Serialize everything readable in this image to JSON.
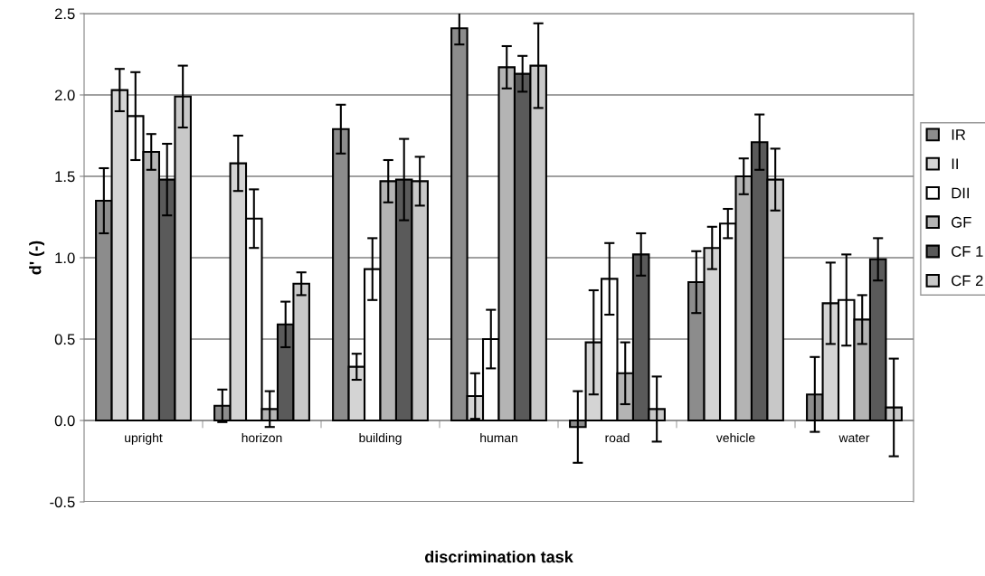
{
  "chart_data": {
    "type": "bar",
    "xlabel": "discrimination task",
    "ylabel": "d' (-)",
    "categories": [
      "upright",
      "horizon",
      "building",
      "human",
      "road",
      "vehicle",
      "water"
    ],
    "series": [
      {
        "name": "IR",
        "color": "#8c8c8c",
        "values": [
          1.35,
          0.09,
          1.79,
          2.41,
          -0.04,
          0.85,
          0.16
        ],
        "errors": [
          0.2,
          0.1,
          0.15,
          0.1,
          0.22,
          0.19,
          0.23
        ]
      },
      {
        "name": "II",
        "color": "#d4d4d4",
        "values": [
          2.03,
          1.58,
          0.33,
          0.15,
          0.48,
          1.06,
          0.72
        ],
        "errors": [
          0.13,
          0.17,
          0.08,
          0.14,
          0.32,
          0.13,
          0.25
        ]
      },
      {
        "name": "DII",
        "color": "#ffffff",
        "values": [
          1.87,
          1.24,
          0.93,
          0.5,
          0.87,
          1.21,
          0.74
        ],
        "errors": [
          0.27,
          0.18,
          0.19,
          0.18,
          0.22,
          0.09,
          0.28
        ]
      },
      {
        "name": "GF",
        "color": "#b4b4b4",
        "values": [
          1.65,
          0.07,
          1.47,
          2.17,
          0.29,
          1.5,
          0.62
        ],
        "errors": [
          0.11,
          0.11,
          0.13,
          0.13,
          0.19,
          0.11,
          0.15
        ]
      },
      {
        "name": "CF 1",
        "color": "#5a5a5a",
        "values": [
          1.48,
          0.59,
          1.48,
          2.13,
          1.02,
          1.71,
          0.99
        ],
        "errors": [
          0.22,
          0.14,
          0.25,
          0.11,
          0.13,
          0.17,
          0.13
        ]
      },
      {
        "name": "CF 2",
        "color": "#c8c8c8",
        "values": [
          1.99,
          0.84,
          1.47,
          2.18,
          0.07,
          1.48,
          0.08
        ],
        "errors": [
          0.19,
          0.07,
          0.15,
          0.26,
          0.2,
          0.19,
          0.3
        ]
      }
    ],
    "ylim": [
      -0.5,
      2.5
    ],
    "yticks": [
      {
        "value": -0.5,
        "label": "-0.5"
      },
      {
        "value": 0,
        "label": "0.0"
      },
      {
        "value": 0.5,
        "label": "0.5"
      },
      {
        "value": 1,
        "label": "1.0"
      },
      {
        "value": 1.5,
        "label": "1.5"
      },
      {
        "value": 2,
        "label": "2.0"
      },
      {
        "value": 2.5,
        "label": "2.5"
      }
    ],
    "grid": "y",
    "legend": "right"
  }
}
